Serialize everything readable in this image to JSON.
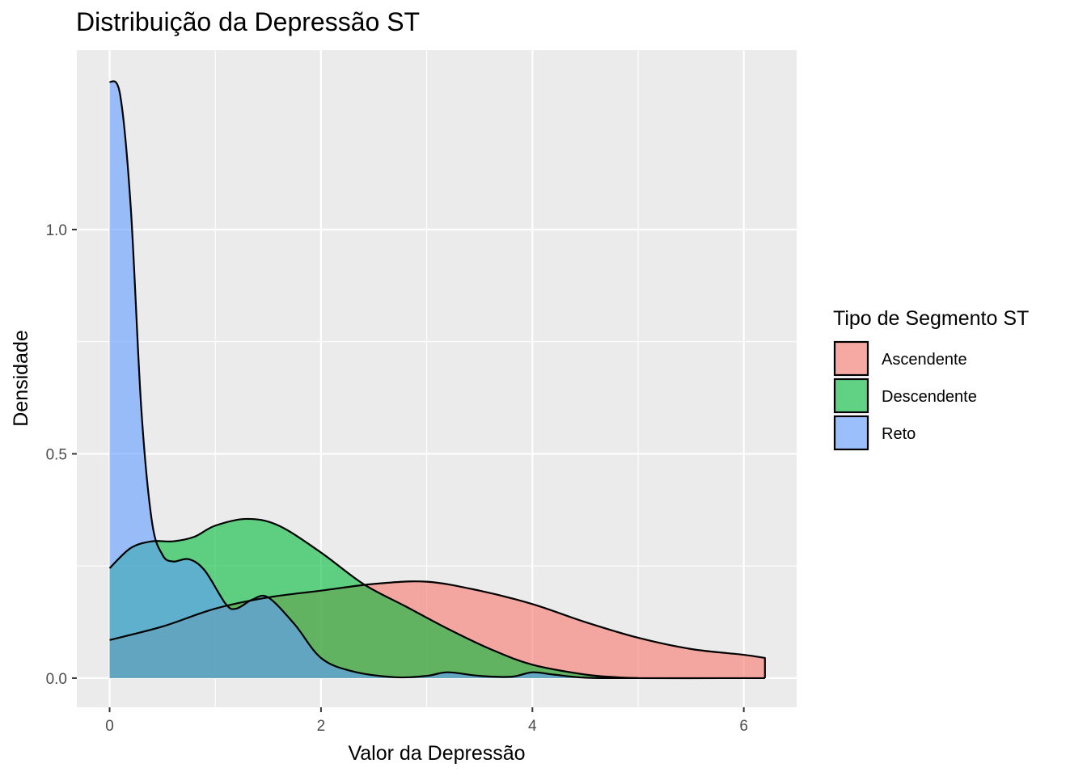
{
  "chart_data": {
    "type": "area",
    "title": "Distribuição da Depressão ST",
    "xlabel": "Valor da Depressão",
    "ylabel": "Densidade",
    "xlim": [
      -0.31,
      6.5
    ],
    "ylim": [
      -0.065,
      1.4
    ],
    "x_ticks": [
      0,
      2,
      4,
      6
    ],
    "y_ticks": [
      0.0,
      0.5,
      1.0
    ],
    "x_tick_labels": [
      "0",
      "2",
      "4",
      "6"
    ],
    "y_tick_labels": [
      "0.0",
      "0.5",
      "1.0"
    ],
    "grid": true,
    "legend": {
      "title": "Tipo de Segmento ST",
      "position": "right"
    },
    "series": [
      {
        "name": "Ascendente",
        "color": "#F8766D",
        "points": [
          [
            0,
            0.085
          ],
          [
            0.5,
            0.115
          ],
          [
            1,
            0.155
          ],
          [
            1.5,
            0.18
          ],
          [
            2,
            0.195
          ],
          [
            2.5,
            0.21
          ],
          [
            3,
            0.215
          ],
          [
            3.5,
            0.195
          ],
          [
            4,
            0.165
          ],
          [
            4.5,
            0.125
          ],
          [
            5,
            0.09
          ],
          [
            5.5,
            0.065
          ],
          [
            6,
            0.052
          ],
          [
            6.2,
            0.045
          ]
        ]
      },
      {
        "name": "Descendente",
        "color": "#00BA38",
        "points": [
          [
            0,
            0.245
          ],
          [
            0.2,
            0.29
          ],
          [
            0.4,
            0.305
          ],
          [
            0.6,
            0.305
          ],
          [
            0.8,
            0.315
          ],
          [
            1,
            0.34
          ],
          [
            1.3,
            0.355
          ],
          [
            1.6,
            0.34
          ],
          [
            2,
            0.28
          ],
          [
            2.4,
            0.21
          ],
          [
            2.8,
            0.16
          ],
          [
            3.2,
            0.11
          ],
          [
            3.6,
            0.065
          ],
          [
            4,
            0.03
          ],
          [
            4.5,
            0.008
          ],
          [
            4.8,
            0.002
          ],
          [
            5,
            0
          ]
        ]
      },
      {
        "name": "Reto",
        "color": "#619CFF",
        "points": [
          [
            0,
            1.33
          ],
          [
            0.1,
            1.3
          ],
          [
            0.2,
            1.05
          ],
          [
            0.3,
            0.6
          ],
          [
            0.4,
            0.35
          ],
          [
            0.5,
            0.275
          ],
          [
            0.6,
            0.26
          ],
          [
            0.75,
            0.265
          ],
          [
            0.9,
            0.24
          ],
          [
            1.1,
            0.165
          ],
          [
            1.2,
            0.155
          ],
          [
            1.35,
            0.175
          ],
          [
            1.5,
            0.18
          ],
          [
            1.75,
            0.12
          ],
          [
            2,
            0.045
          ],
          [
            2.3,
            0.015
          ],
          [
            2.7,
            0.002
          ],
          [
            3,
            0.005
          ],
          [
            3.2,
            0.013
          ],
          [
            3.5,
            0.005
          ],
          [
            3.8,
            0.003
          ],
          [
            4,
            0.013
          ],
          [
            4.2,
            0.008
          ],
          [
            4.5,
            0.001
          ],
          [
            5,
            0
          ],
          [
            6,
            0
          ],
          [
            6.2,
            0
          ]
        ]
      }
    ]
  }
}
